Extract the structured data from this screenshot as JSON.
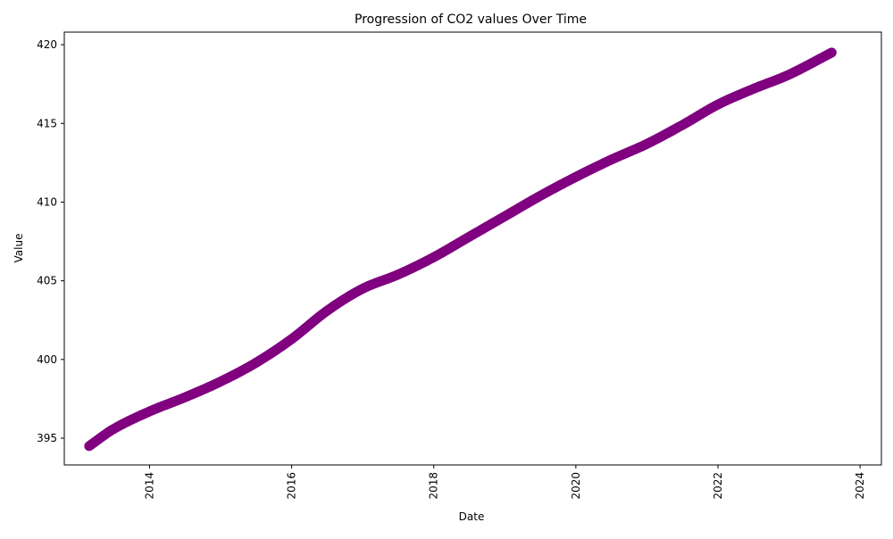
{
  "chart_data": {
    "type": "scatter",
    "title": "Progression of CO2 values Over Time",
    "xlabel": "Date",
    "ylabel": "Value",
    "xlim": [
      2012.8,
      2024.3
    ],
    "ylim": [
      393.3,
      420.8
    ],
    "x_ticks": [
      2014,
      2016,
      2018,
      2020,
      2022,
      2024
    ],
    "y_ticks": [
      395,
      400,
      405,
      410,
      415,
      420
    ],
    "grid": false,
    "marker_color": "#800080",
    "series": [
      {
        "x": [
          2013.15,
          2013.5,
          2014.0,
          2014.5,
          2015.0,
          2015.5,
          2016.0,
          2016.5,
          2017.0,
          2017.5,
          2018.0,
          2018.5,
          2019.0,
          2019.5,
          2020.0,
          2020.5,
          2021.0,
          2021.5,
          2022.0,
          2022.5,
          2023.0,
          2023.6
        ],
        "y": [
          394.5,
          395.6,
          396.7,
          397.6,
          398.6,
          399.8,
          401.3,
          403.1,
          404.5,
          405.4,
          406.5,
          407.8,
          409.1,
          410.4,
          411.6,
          412.7,
          413.7,
          414.9,
          416.2,
          417.2,
          418.1,
          419.5
        ]
      }
    ]
  }
}
